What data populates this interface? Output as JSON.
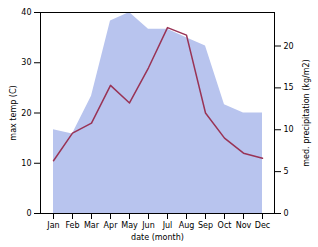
{
  "chart_data": {
    "type": "line",
    "categories": [
      "Jan",
      "Feb",
      "Mar",
      "Apr",
      "May",
      "Jun",
      "Jul",
      "Aug",
      "Sep",
      "Oct",
      "Nov",
      "Dec"
    ],
    "xlabel": "date (month)",
    "ylabel": "max temp (C)",
    "y2label": "med. precipitation (kg/m2)",
    "series": [
      {
        "type": "area",
        "axis": "y2",
        "color": "#b8c4ee",
        "values": [
          10,
          9.5,
          14,
          23,
          24,
          22,
          22,
          21,
          20,
          13,
          12,
          12
        ]
      },
      {
        "type": "line",
        "color": "#993355",
        "values": [
          10.5,
          16.0,
          18.0,
          25.5,
          22.0,
          29.0,
          37.0,
          35.5,
          20.0,
          15.0,
          12.0,
          11.0
        ]
      }
    ],
    "ylim": [
      0,
      40
    ],
    "yticks": [
      0,
      10,
      20,
      30,
      40
    ],
    "y2lim": [
      0,
      24
    ],
    "y2ticks": [
      0,
      5,
      10,
      15,
      20
    ]
  }
}
